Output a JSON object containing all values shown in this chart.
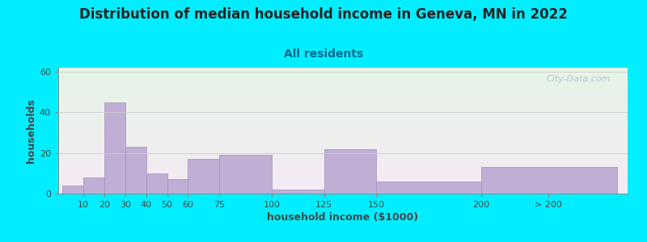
{
  "title": "Distribution of median household income in Geneva, MN in 2022",
  "subtitle": "All residents",
  "xlabel": "household income ($1000)",
  "ylabel": "households",
  "bar_color": "#c0aed4",
  "bar_edge_color": "#a090be",
  "background_color": "#00eeff",
  "ylim": [
    0,
    62
  ],
  "yticks": [
    0,
    20,
    40,
    60
  ],
  "categories": [
    "10",
    "20",
    "30",
    "40",
    "50",
    "60",
    "75",
    "100",
    "125",
    "150",
    "200",
    "> 200"
  ],
  "values": [
    4,
    8,
    45,
    23,
    10,
    7,
    17,
    19,
    2,
    22,
    6,
    13
  ],
  "bar_lefts": [
    0,
    10,
    20,
    30,
    40,
    50,
    60,
    75,
    100,
    125,
    150,
    200
  ],
  "bar_rights": [
    10,
    20,
    30,
    40,
    50,
    60,
    75,
    100,
    125,
    150,
    200,
    265
  ],
  "xtick_positions": [
    10,
    20,
    30,
    40,
    50,
    60,
    75,
    100,
    125,
    150,
    200,
    232
  ],
  "xlim": [
    -2,
    270
  ],
  "title_fontsize": 12,
  "subtitle_fontsize": 10,
  "axis_label_fontsize": 9,
  "tick_fontsize": 8,
  "watermark_text": "City-Data.com",
  "watermark_color": "#aabbcc",
  "title_color": "#222222",
  "subtitle_color": "#006688",
  "label_color": "#444444"
}
